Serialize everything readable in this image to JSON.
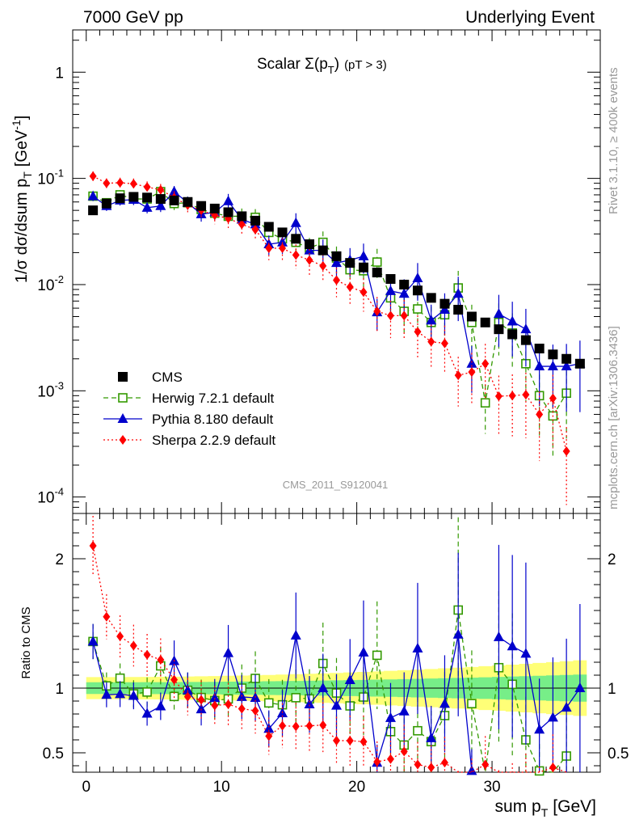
{
  "header": {
    "left": "7000 GeV pp",
    "right": "Underlying Event"
  },
  "side_labels": {
    "rivet": "Rivet 3.1.10, ≥ 400k events",
    "mcplots": "mcplots.cern.ch [arXiv:1306.3436]"
  },
  "chart_data": {
    "type": "scatter",
    "title": "Scalar Σ(pT) (pT > 3)",
    "title_parts": {
      "main": "Scalar Σ(p",
      "sub": "T",
      "close": ")",
      "cut": "(pT >  3)"
    },
    "analysis_id": "CMS_2011_S9120041",
    "xlabel": "sum pT [GeV]",
    "xlabel_parts": {
      "main": "sum p",
      "sub": "T",
      "unit": "[GeV]"
    },
    "ylabel": "1/σ dσ/dsum pT [GeV-1]",
    "ylabel_parts": {
      "main": "1/σ dσ/dsum p",
      "sub": "T",
      "unit": "[GeV",
      "sup": "-1",
      "close": "]"
    },
    "ratio_ylabel": "Ratio to CMS",
    "xlim": [
      -1,
      38
    ],
    "ylim": [
      7e-05,
      2.5
    ],
    "ylog": true,
    "ratio_ylim": [
      0.35,
      2.35
    ],
    "x_ticks": [
      0,
      10,
      20,
      30
    ],
    "y_ticks": [
      {
        "value": 1,
        "base": "1",
        "exp": ""
      },
      {
        "value": 0.1,
        "base": "10",
        "exp": "-1"
      },
      {
        "value": 0.01,
        "base": "10",
        "exp": "-2"
      },
      {
        "value": 0.001,
        "base": "10",
        "exp": "-3"
      },
      {
        "value": 0.0001,
        "base": "10",
        "exp": "-4"
      }
    ],
    "ratio_ticks": [
      0.5,
      1,
      2
    ],
    "legend": {
      "position": "bottom-left"
    },
    "x": [
      0.5,
      1.5,
      2.5,
      3.5,
      4.5,
      5.5,
      6.5,
      7.5,
      8.5,
      9.5,
      10.5,
      11.5,
      12.5,
      13.5,
      14.5,
      15.5,
      16.5,
      17.5,
      18.5,
      19.5,
      20.5,
      21.5,
      22.5,
      23.5,
      24.5,
      25.5,
      26.5,
      27.5,
      28.5,
      29.5,
      30.5,
      31.5,
      32.5,
      33.5,
      34.5,
      35.5,
      36.5
    ],
    "series": [
      {
        "name": "CMS",
        "color": "#000000",
        "marker": "filled-square",
        "line": "none",
        "values": [
          0.05,
          0.058,
          0.065,
          0.067,
          0.066,
          0.064,
          0.062,
          0.06,
          0.055,
          0.052,
          0.048,
          0.044,
          0.04,
          0.035,
          0.031,
          0.027,
          0.024,
          0.021,
          0.0185,
          0.016,
          0.0145,
          0.013,
          0.0113,
          0.01,
          0.0088,
          0.0075,
          0.0066,
          0.0058,
          0.005,
          0.0044,
          0.0038,
          0.0034,
          0.003,
          0.0025,
          0.0022,
          0.002,
          0.0018
        ]
      },
      {
        "name": "Herwig 7.2.1 default",
        "color": "#339900",
        "marker": "open-square",
        "line": "dashed",
        "values": [
          0.068,
          0.059,
          0.07,
          0.064,
          0.064,
          0.075,
          0.058,
          0.059,
          0.051,
          0.047,
          0.044,
          0.044,
          0.043,
          0.031,
          0.027,
          0.025,
          0.022,
          0.025,
          0.0178,
          0.0138,
          0.0135,
          0.0163,
          0.0075,
          0.0056,
          0.0059,
          0.0044,
          0.0052,
          0.0093,
          0.0044,
          0.00077,
          0.0044,
          0.0035,
          0.0018,
          0.0009,
          0.00058,
          0.00095,
          null
        ]
      },
      {
        "name": "Pythia 8.180 default",
        "color": "#0000cc",
        "marker": "filled-triangle",
        "line": "solid",
        "values": [
          0.068,
          0.055,
          0.062,
          0.063,
          0.053,
          0.055,
          0.075,
          0.059,
          0.046,
          0.048,
          0.061,
          0.041,
          0.037,
          0.024,
          0.025,
          0.038,
          0.021,
          0.021,
          0.016,
          0.017,
          0.0185,
          0.0055,
          0.0087,
          0.0082,
          0.0115,
          0.0046,
          0.0058,
          0.0082,
          0.0018,
          null,
          0.0053,
          0.0045,
          0.0038,
          0.0017,
          0.0017,
          0.0017,
          0.0018
        ]
      },
      {
        "name": "Sherpa 2.2.9 default",
        "color": "#ff0000",
        "marker": "filled-diamond",
        "line": "dotted",
        "values": [
          0.105,
          0.09,
          0.091,
          0.089,
          0.083,
          0.078,
          0.066,
          0.056,
          0.05,
          0.045,
          0.042,
          0.037,
          0.033,
          0.022,
          0.022,
          0.019,
          0.017,
          0.015,
          0.011,
          0.0095,
          0.0085,
          0.0056,
          0.0051,
          0.0051,
          0.0036,
          0.0029,
          0.0028,
          0.0014,
          0.0015,
          0.0018,
          0.00089,
          0.0009,
          0.00092,
          0.0006,
          0.00085,
          0.00027,
          null
        ]
      }
    ]
  }
}
